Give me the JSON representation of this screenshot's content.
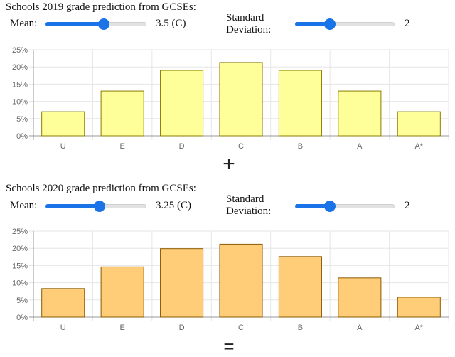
{
  "panels": [
    {
      "title": "Schools 2019 grade prediction from GCSEs:",
      "mean_label": "Mean:",
      "mean_value": 3.5,
      "mean_range": [
        0,
        6
      ],
      "mean_display": "3.5 (C)",
      "sd_label_line1": "Standard",
      "sd_label_line2": "Deviation:",
      "sd_value": 2,
      "sd_range": [
        0,
        6
      ],
      "sd_display": "2",
      "bar_color": "#ffff99",
      "bar_stroke": "#8b7d00"
    },
    {
      "title": "Schools 2020 grade prediction from GCSEs:",
      "mean_label": "Mean:",
      "mean_value": 3.25,
      "mean_range": [
        0,
        6
      ],
      "mean_display": "3.25 (C)",
      "sd_label_line1": "Standard",
      "sd_label_line2": "Deviation:",
      "sd_value": 2,
      "sd_range": [
        0,
        6
      ],
      "sd_display": "2",
      "bar_color": "#ffcc77",
      "bar_stroke": "#8b5a00"
    }
  ],
  "operators": {
    "plus": "+",
    "equals": "="
  },
  "chart_data": [
    {
      "type": "bar",
      "categories": [
        "U",
        "E",
        "D",
        "C",
        "B",
        "A",
        "A*"
      ],
      "values": [
        7.0,
        13.0,
        19.0,
        21.3,
        19.0,
        13.0,
        7.0
      ],
      "yticks": [
        "0%",
        "5%",
        "10%",
        "15%",
        "20%",
        "25%"
      ],
      "ylim": [
        0,
        25
      ],
      "grid": true
    },
    {
      "type": "bar",
      "categories": [
        "U",
        "E",
        "D",
        "C",
        "B",
        "A",
        "A*"
      ],
      "values": [
        8.3,
        14.6,
        19.9,
        21.2,
        17.6,
        11.4,
        5.8
      ],
      "yticks": [
        "0%",
        "5%",
        "10%",
        "15%",
        "20%",
        "25%"
      ],
      "ylim": [
        0,
        25
      ],
      "grid": true
    }
  ]
}
